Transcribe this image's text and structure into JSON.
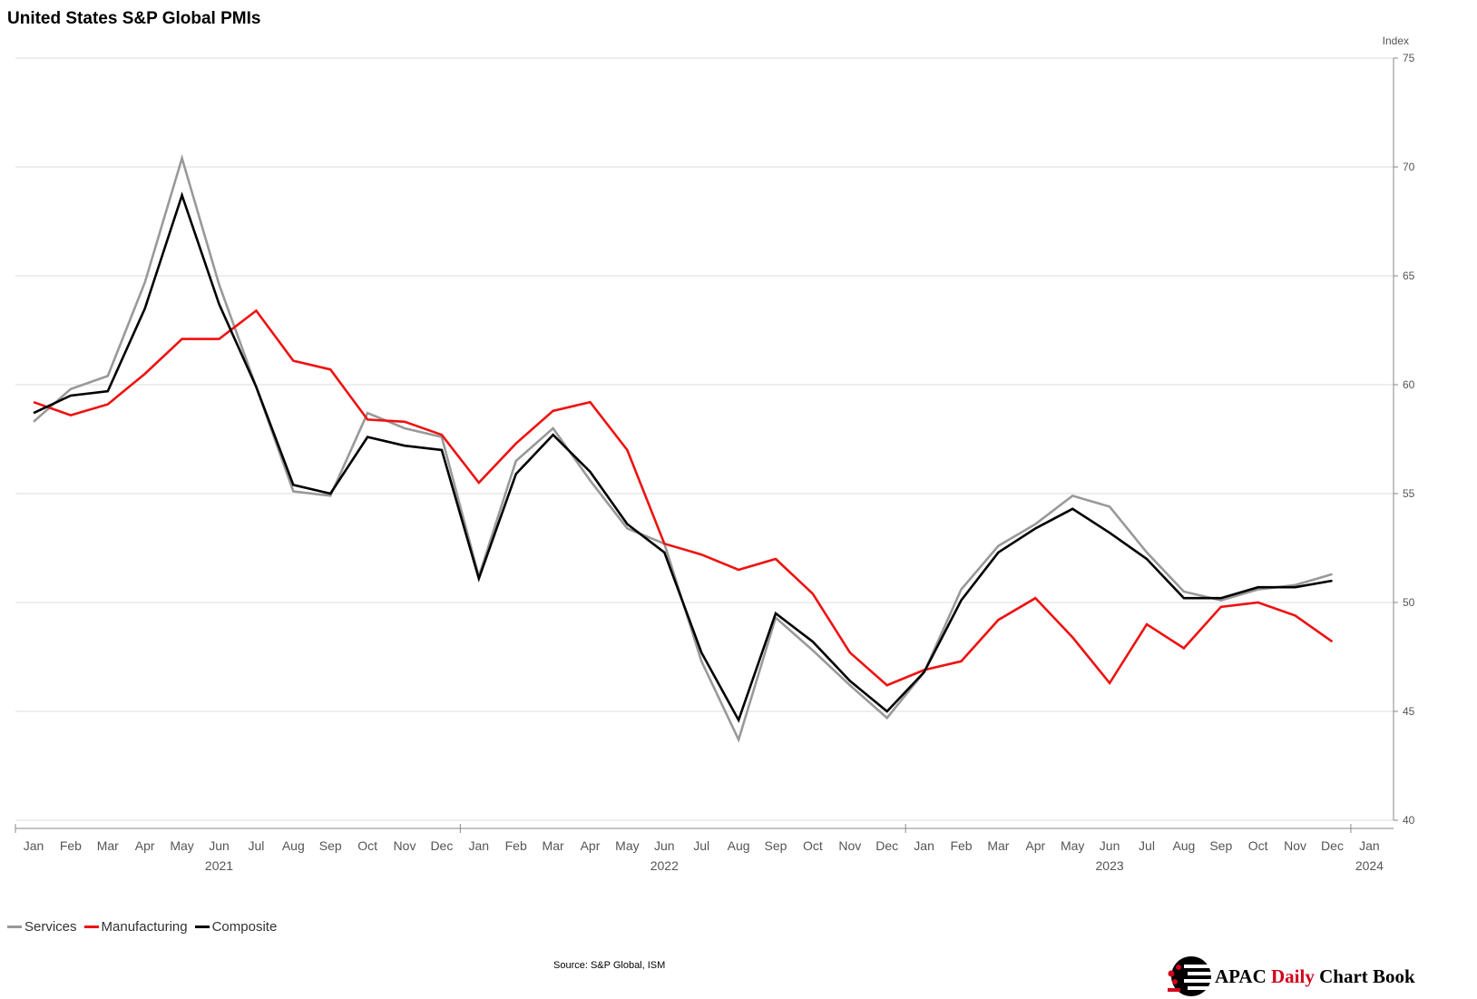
{
  "colors": {
    "services": "#999999",
    "manufacturing": "#ee1111",
    "composite": "#000000",
    "grid": "#dddddd",
    "axis": "#888888",
    "brand_accent": "#d0021b"
  },
  "brand": {
    "part1": "APAC ",
    "part2": "Daily",
    "part3": " Chart Book",
    "logo_icon": "apac-logo-icon"
  },
  "source": "Source: S&P Global, ISM",
  "chart_data": {
    "type": "line",
    "title": "United States S&P Global PMIs",
    "ylabel": "Index",
    "ylim": [
      40,
      75
    ],
    "yticks": [
      40,
      45,
      50,
      55,
      60,
      65,
      70,
      75
    ],
    "y_axis_position": "right",
    "grid": true,
    "legend_position": "bottom-left",
    "x_start": "2021-01",
    "x_end": "2024-01",
    "month_labels": [
      "Jan",
      "Feb",
      "Mar",
      "Apr",
      "May",
      "Jun",
      "Jul",
      "Aug",
      "Sep",
      "Oct",
      "Nov",
      "Dec",
      "Jan",
      "Feb",
      "Mar",
      "Apr",
      "May",
      "Jun",
      "Jul",
      "Aug",
      "Sep",
      "Oct",
      "Nov",
      "Dec",
      "Jan",
      "Feb",
      "Mar",
      "Apr",
      "May",
      "Jun",
      "Jul",
      "Aug",
      "Sep",
      "Oct",
      "Nov",
      "Dec",
      "Jan"
    ],
    "year_labels": [
      {
        "label": "2021",
        "month": "2021-06"
      },
      {
        "label": "2022",
        "month": "2022-06"
      },
      {
        "label": "2023",
        "month": "2023-06"
      },
      {
        "label": "2024",
        "month": "2024-01"
      }
    ],
    "x": [
      "2021-01",
      "2021-02",
      "2021-03",
      "2021-04",
      "2021-05",
      "2021-06",
      "2021-07",
      "2021-08",
      "2021-09",
      "2021-10",
      "2021-11",
      "2021-12",
      "2022-01",
      "2022-02",
      "2022-03",
      "2022-04",
      "2022-05",
      "2022-06",
      "2022-07",
      "2022-08",
      "2022-09",
      "2022-10",
      "2022-11",
      "2022-12",
      "2023-01",
      "2023-02",
      "2023-03",
      "2023-04",
      "2023-05",
      "2023-06",
      "2023-07",
      "2023-08",
      "2023-09",
      "2023-10",
      "2023-11",
      "2023-12"
    ],
    "series": [
      {
        "name": "Services",
        "values": [
          58.3,
          59.8,
          60.4,
          64.7,
          70.4,
          64.6,
          59.9,
          55.1,
          54.9,
          58.7,
          58.0,
          57.6,
          51.2,
          56.5,
          58.0,
          55.6,
          53.4,
          52.7,
          47.3,
          43.7,
          49.3,
          47.8,
          46.2,
          44.7,
          46.8,
          50.6,
          52.6,
          53.6,
          54.9,
          54.4,
          52.3,
          50.5,
          50.1,
          50.6,
          50.8,
          51.3
        ]
      },
      {
        "name": "Manufacturing",
        "values": [
          59.2,
          58.6,
          59.1,
          60.5,
          62.1,
          62.1,
          63.4,
          61.1,
          60.7,
          58.4,
          58.3,
          57.7,
          55.5,
          57.3,
          58.8,
          59.2,
          57.0,
          52.7,
          52.2,
          51.5,
          52.0,
          50.4,
          47.7,
          46.2,
          46.9,
          47.3,
          49.2,
          50.2,
          48.4,
          46.3,
          49.0,
          47.9,
          49.8,
          50.0,
          49.4,
          48.2
        ]
      },
      {
        "name": "Composite",
        "values": [
          58.7,
          59.5,
          59.7,
          63.5,
          68.7,
          63.7,
          59.9,
          55.4,
          55.0,
          57.6,
          57.2,
          57.0,
          51.1,
          55.9,
          57.7,
          56.0,
          53.6,
          52.3,
          47.7,
          44.6,
          49.5,
          48.2,
          46.4,
          45.0,
          46.8,
          50.1,
          52.3,
          53.4,
          54.3,
          53.2,
          52.0,
          50.2,
          50.2,
          50.7,
          50.7,
          51.0
        ]
      }
    ]
  }
}
